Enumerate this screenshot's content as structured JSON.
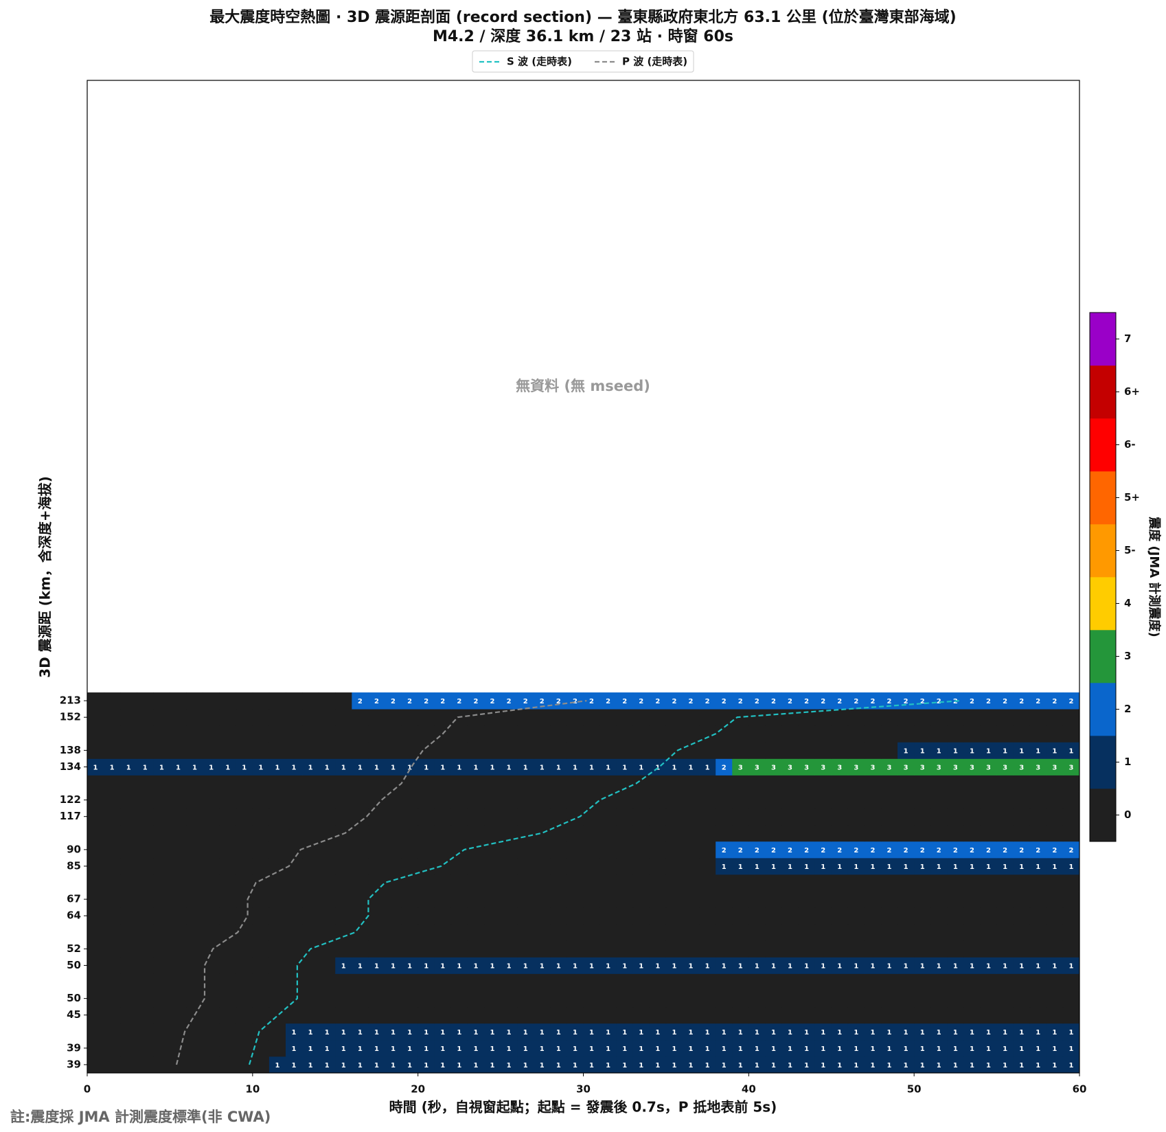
{
  "chart_data": {
    "type": "heatmap",
    "title": "最大震度時空熱圖 · 3D 震源距剖面 (record section) — 臺東縣政府東北方  63.1  公里 (位於臺灣東部海域)",
    "subtitle": "M4.2 / 深度 36.1 km / 23 站 · 時窗 60s",
    "annotation": "無資料 (無 mseed)",
    "xlabel": "時間 (秒，自視窗起點；起點 = 發震後 0.7s，P 抵地表前 5s)",
    "ylabel": "3D 震源距 (km，含深度+海拔)",
    "footnote": "註:震度採 JMA 計測震度標準(非 CWA)",
    "xlim": [
      0,
      60
    ],
    "xticks": [
      0,
      10,
      20,
      30,
      40,
      50,
      60
    ],
    "ylim": [
      -0.5,
      59.5
    ],
    "categories": [
      "39",
      "39",
      null,
      "45",
      "50",
      null,
      "50",
      "52",
      null,
      "64",
      "67",
      null,
      "85",
      "90",
      null,
      "117",
      "122",
      null,
      "134",
      "138",
      null,
      "152",
      "213"
    ],
    "values": [
      [
        0,
        0,
        0,
        0,
        0,
        0,
        0,
        0,
        0,
        0,
        0,
        1,
        1,
        1,
        1,
        1,
        1,
        1,
        1,
        1,
        1,
        1,
        1,
        1,
        1,
        1,
        1,
        1,
        1,
        1,
        1,
        1,
        1,
        1,
        1,
        1,
        1,
        1,
        1,
        1,
        1,
        1,
        1,
        1,
        1,
        1,
        1,
        1,
        1,
        1,
        1,
        1,
        1,
        1,
        1,
        1,
        1,
        1,
        1,
        1
      ],
      [
        0,
        0,
        0,
        0,
        0,
        0,
        0,
        0,
        0,
        0,
        0,
        0,
        1,
        1,
        1,
        1,
        1,
        1,
        1,
        1,
        1,
        1,
        1,
        1,
        1,
        1,
        1,
        1,
        1,
        1,
        1,
        1,
        1,
        1,
        1,
        1,
        1,
        1,
        1,
        1,
        1,
        1,
        1,
        1,
        1,
        1,
        1,
        1,
        1,
        1,
        1,
        1,
        1,
        1,
        1,
        1,
        1,
        1,
        1,
        1
      ],
      [
        0,
        0,
        0,
        0,
        0,
        0,
        0,
        0,
        0,
        0,
        0,
        0,
        1,
        1,
        1,
        1,
        1,
        1,
        1,
        1,
        1,
        1,
        1,
        1,
        1,
        1,
        1,
        1,
        1,
        1,
        1,
        1,
        1,
        1,
        1,
        1,
        1,
        1,
        1,
        1,
        1,
        1,
        1,
        1,
        1,
        1,
        1,
        1,
        1,
        1,
        1,
        1,
        1,
        1,
        1,
        1,
        1,
        1,
        1,
        1
      ],
      [
        0,
        0,
        0,
        0,
        0,
        0,
        0,
        0,
        0,
        0,
        0,
        0,
        0,
        0,
        0,
        0,
        0,
        0,
        0,
        0,
        0,
        0,
        0,
        0,
        0,
        0,
        0,
        0,
        0,
        0,
        0,
        0,
        0,
        0,
        0,
        0,
        0,
        0,
        0,
        0,
        0,
        0,
        0,
        0,
        0,
        0,
        0,
        0,
        0,
        0,
        0,
        0,
        0,
        0,
        0,
        0,
        0,
        0,
        0,
        0
      ],
      [
        0,
        0,
        0,
        0,
        0,
        0,
        0,
        0,
        0,
        0,
        0,
        0,
        0,
        0,
        0,
        0,
        0,
        0,
        0,
        0,
        0,
        0,
        0,
        0,
        0,
        0,
        0,
        0,
        0,
        0,
        0,
        0,
        0,
        0,
        0,
        0,
        0,
        0,
        0,
        0,
        0,
        0,
        0,
        0,
        0,
        0,
        0,
        0,
        0,
        0,
        0,
        0,
        0,
        0,
        0,
        0,
        0,
        0,
        0,
        0
      ],
      [
        0,
        0,
        0,
        0,
        0,
        0,
        0,
        0,
        0,
        0,
        0,
        0,
        0,
        0,
        0,
        0,
        0,
        0,
        0,
        0,
        0,
        0,
        0,
        0,
        0,
        0,
        0,
        0,
        0,
        0,
        0,
        0,
        0,
        0,
        0,
        0,
        0,
        0,
        0,
        0,
        0,
        0,
        0,
        0,
        0,
        0,
        0,
        0,
        0,
        0,
        0,
        0,
        0,
        0,
        0,
        0,
        0,
        0,
        0,
        0
      ],
      [
        0,
        0,
        0,
        0,
        0,
        0,
        0,
        0,
        0,
        0,
        0,
        0,
        0,
        0,
        0,
        1,
        1,
        1,
        1,
        1,
        1,
        1,
        1,
        1,
        1,
        1,
        1,
        1,
        1,
        1,
        1,
        1,
        1,
        1,
        1,
        1,
        1,
        1,
        1,
        1,
        1,
        1,
        1,
        1,
        1,
        1,
        1,
        1,
        1,
        1,
        1,
        1,
        1,
        1,
        1,
        1,
        1,
        1,
        1,
        1
      ],
      [
        0,
        0,
        0,
        0,
        0,
        0,
        0,
        0,
        0,
        0,
        0,
        0,
        0,
        0,
        0,
        0,
        0,
        0,
        0,
        0,
        0,
        0,
        0,
        0,
        0,
        0,
        0,
        0,
        0,
        0,
        0,
        0,
        0,
        0,
        0,
        0,
        0,
        0,
        0,
        0,
        0,
        0,
        0,
        0,
        0,
        0,
        0,
        0,
        0,
        0,
        0,
        0,
        0,
        0,
        0,
        0,
        0,
        0,
        0,
        0
      ],
      [
        0,
        0,
        0,
        0,
        0,
        0,
        0,
        0,
        0,
        0,
        0,
        0,
        0,
        0,
        0,
        0,
        0,
        0,
        0,
        0,
        0,
        0,
        0,
        0,
        0,
        0,
        0,
        0,
        0,
        0,
        0,
        0,
        0,
        0,
        0,
        0,
        0,
        0,
        0,
        0,
        0,
        0,
        0,
        0,
        0,
        0,
        0,
        0,
        0,
        0,
        0,
        0,
        0,
        0,
        0,
        0,
        0,
        0,
        0,
        0
      ],
      [
        0,
        0,
        0,
        0,
        0,
        0,
        0,
        0,
        0,
        0,
        0,
        0,
        0,
        0,
        0,
        0,
        0,
        0,
        0,
        0,
        0,
        0,
        0,
        0,
        0,
        0,
        0,
        0,
        0,
        0,
        0,
        0,
        0,
        0,
        0,
        0,
        0,
        0,
        0,
        0,
        0,
        0,
        0,
        0,
        0,
        0,
        0,
        0,
        0,
        0,
        0,
        0,
        0,
        0,
        0,
        0,
        0,
        0,
        0,
        0
      ],
      [
        0,
        0,
        0,
        0,
        0,
        0,
        0,
        0,
        0,
        0,
        0,
        0,
        0,
        0,
        0,
        0,
        0,
        0,
        0,
        0,
        0,
        0,
        0,
        0,
        0,
        0,
        0,
        0,
        0,
        0,
        0,
        0,
        0,
        0,
        0,
        0,
        0,
        0,
        0,
        0,
        0,
        0,
        0,
        0,
        0,
        0,
        0,
        0,
        0,
        0,
        0,
        0,
        0,
        0,
        0,
        0,
        0,
        0,
        0,
        0
      ],
      [
        0,
        0,
        0,
        0,
        0,
        0,
        0,
        0,
        0,
        0,
        0,
        0,
        0,
        0,
        0,
        0,
        0,
        0,
        0,
        0,
        0,
        0,
        0,
        0,
        0,
        0,
        0,
        0,
        0,
        0,
        0,
        0,
        0,
        0,
        0,
        0,
        0,
        0,
        0,
        0,
        0,
        0,
        0,
        0,
        0,
        0,
        0,
        0,
        0,
        0,
        0,
        0,
        0,
        0,
        0,
        0,
        0,
        0,
        0,
        0
      ],
      [
        0,
        0,
        0,
        0,
        0,
        0,
        0,
        0,
        0,
        0,
        0,
        0,
        0,
        0,
        0,
        0,
        0,
        0,
        0,
        0,
        0,
        0,
        0,
        0,
        0,
        0,
        0,
        0,
        0,
        0,
        0,
        0,
        0,
        0,
        0,
        0,
        0,
        0,
        1,
        1,
        1,
        1,
        1,
        1,
        1,
        1,
        1,
        1,
        1,
        1,
        1,
        1,
        1,
        1,
        1,
        1,
        1,
        1,
        1,
        1
      ],
      [
        0,
        0,
        0,
        0,
        0,
        0,
        0,
        0,
        0,
        0,
        0,
        0,
        0,
        0,
        0,
        0,
        0,
        0,
        0,
        0,
        0,
        0,
        0,
        0,
        0,
        0,
        0,
        0,
        0,
        0,
        0,
        0,
        0,
        0,
        0,
        0,
        0,
        0,
        2,
        2,
        2,
        2,
        2,
        2,
        2,
        2,
        2,
        2,
        2,
        2,
        2,
        2,
        2,
        2,
        2,
        2,
        2,
        2,
        2,
        2
      ],
      [
        0,
        0,
        0,
        0,
        0,
        0,
        0,
        0,
        0,
        0,
        0,
        0,
        0,
        0,
        0,
        0,
        0,
        0,
        0,
        0,
        0,
        0,
        0,
        0,
        0,
        0,
        0,
        0,
        0,
        0,
        0,
        0,
        0,
        0,
        0,
        0,
        0,
        0,
        0,
        0,
        0,
        0,
        0,
        0,
        0,
        0,
        0,
        0,
        0,
        0,
        0,
        0,
        0,
        0,
        0,
        0,
        0,
        0,
        0,
        0
      ],
      [
        0,
        0,
        0,
        0,
        0,
        0,
        0,
        0,
        0,
        0,
        0,
        0,
        0,
        0,
        0,
        0,
        0,
        0,
        0,
        0,
        0,
        0,
        0,
        0,
        0,
        0,
        0,
        0,
        0,
        0,
        0,
        0,
        0,
        0,
        0,
        0,
        0,
        0,
        0,
        0,
        0,
        0,
        0,
        0,
        0,
        0,
        0,
        0,
        0,
        0,
        0,
        0,
        0,
        0,
        0,
        0,
        0,
        0,
        0,
        0
      ],
      [
        0,
        0,
        0,
        0,
        0,
        0,
        0,
        0,
        0,
        0,
        0,
        0,
        0,
        0,
        0,
        0,
        0,
        0,
        0,
        0,
        0,
        0,
        0,
        0,
        0,
        0,
        0,
        0,
        0,
        0,
        0,
        0,
        0,
        0,
        0,
        0,
        0,
        0,
        0,
        0,
        0,
        0,
        0,
        0,
        0,
        0,
        0,
        0,
        0,
        0,
        0,
        0,
        0,
        0,
        0,
        0,
        0,
        0,
        0,
        0
      ],
      [
        0,
        0,
        0,
        0,
        0,
        0,
        0,
        0,
        0,
        0,
        0,
        0,
        0,
        0,
        0,
        0,
        0,
        0,
        0,
        0,
        0,
        0,
        0,
        0,
        0,
        0,
        0,
        0,
        0,
        0,
        0,
        0,
        0,
        0,
        0,
        0,
        0,
        0,
        0,
        0,
        0,
        0,
        0,
        0,
        0,
        0,
        0,
        0,
        0,
        0,
        0,
        0,
        0,
        0,
        0,
        0,
        0,
        0,
        0,
        0
      ],
      [
        1,
        1,
        1,
        1,
        1,
        1,
        1,
        1,
        1,
        1,
        1,
        1,
        1,
        1,
        1,
        1,
        1,
        1,
        1,
        1,
        1,
        1,
        1,
        1,
        1,
        1,
        1,
        1,
        1,
        1,
        1,
        1,
        1,
        1,
        1,
        1,
        1,
        1,
        2,
        3,
        3,
        3,
        3,
        3,
        3,
        3,
        3,
        3,
        3,
        3,
        3,
        3,
        3,
        3,
        3,
        3,
        3,
        3,
        3,
        3
      ],
      [
        0,
        0,
        0,
        0,
        0,
        0,
        0,
        0,
        0,
        0,
        0,
        0,
        0,
        0,
        0,
        0,
        0,
        0,
        0,
        0,
        0,
        0,
        0,
        0,
        0,
        0,
        0,
        0,
        0,
        0,
        0,
        0,
        0,
        0,
        0,
        0,
        0,
        0,
        0,
        0,
        0,
        0,
        0,
        0,
        0,
        0,
        0,
        0,
        0,
        1,
        1,
        1,
        1,
        1,
        1,
        1,
        1,
        1,
        1,
        1
      ],
      [
        0,
        0,
        0,
        0,
        0,
        0,
        0,
        0,
        0,
        0,
        0,
        0,
        0,
        0,
        0,
        0,
        0,
        0,
        0,
        0,
        0,
        0,
        0,
        0,
        0,
        0,
        0,
        0,
        0,
        0,
        0,
        0,
        0,
        0,
        0,
        0,
        0,
        0,
        0,
        0,
        0,
        0,
        0,
        0,
        0,
        0,
        0,
        0,
        0,
        0,
        0,
        0,
        0,
        0,
        0,
        0,
        0,
        0,
        0,
        0
      ],
      [
        0,
        0,
        0,
        0,
        0,
        0,
        0,
        0,
        0,
        0,
        0,
        0,
        0,
        0,
        0,
        0,
        0,
        0,
        0,
        0,
        0,
        0,
        0,
        0,
        0,
        0,
        0,
        0,
        0,
        0,
        0,
        0,
        0,
        0,
        0,
        0,
        0,
        0,
        0,
        0,
        0,
        0,
        0,
        0,
        0,
        0,
        0,
        0,
        0,
        0,
        0,
        0,
        0,
        0,
        0,
        0,
        0,
        0,
        0,
        0
      ],
      [
        0,
        0,
        0,
        0,
        0,
        0,
        0,
        0,
        0,
        0,
        0,
        0,
        0,
        0,
        0,
        0,
        2,
        2,
        2,
        2,
        2,
        2,
        2,
        2,
        2,
        2,
        2,
        2,
        2,
        2,
        2,
        2,
        2,
        2,
        2,
        2,
        2,
        2,
        2,
        2,
        2,
        2,
        2,
        2,
        2,
        2,
        2,
        2,
        2,
        2,
        2,
        2,
        2,
        2,
        2,
        2,
        2,
        2,
        2,
        2
      ]
    ],
    "colorbar": {
      "label": "震度 (JMA 計測震度)",
      "levels": [
        "0",
        "1",
        "2",
        "3",
        "4",
        "5-",
        "5+",
        "6-",
        "6+",
        "7"
      ],
      "colors": [
        "#202020",
        "#06305f",
        "#0a66cc",
        "#24963a",
        "#ffcc00",
        "#ff9900",
        "#ff6600",
        "#ff0000",
        "#c40000",
        "#9a00c8"
      ]
    },
    "series": [
      {
        "name": "S 波 (走時表)",
        "color": "#22c1c3",
        "x": [
          9.8,
          10.4,
          12.7,
          12.7,
          13.5,
          16.2,
          17.0,
          17.0,
          18.0,
          21.4,
          22.8,
          27.5,
          29.8,
          31.0,
          33.2,
          34.6,
          35.7,
          38.0,
          39.3,
          52.8
        ],
        "y": [
          0,
          2,
          4,
          6,
          7,
          8,
          9,
          10,
          11,
          12,
          13,
          14,
          15,
          16,
          17,
          18,
          19,
          20,
          21,
          22
        ]
      },
      {
        "name": "P 波 (走時表)",
        "color": "#8c8c8c",
        "x": [
          5.4,
          5.9,
          7.1,
          7.1,
          7.6,
          9.1,
          9.7,
          9.7,
          10.2,
          12.2,
          12.9,
          15.6,
          16.9,
          17.8,
          19.0,
          19.6,
          20.3,
          21.5,
          22.4,
          30.2
        ],
        "y": [
          0,
          2,
          4,
          6,
          7,
          8,
          9,
          10,
          11,
          12,
          13,
          14,
          15,
          16,
          17,
          18,
          19,
          20,
          21,
          22
        ]
      }
    ]
  }
}
